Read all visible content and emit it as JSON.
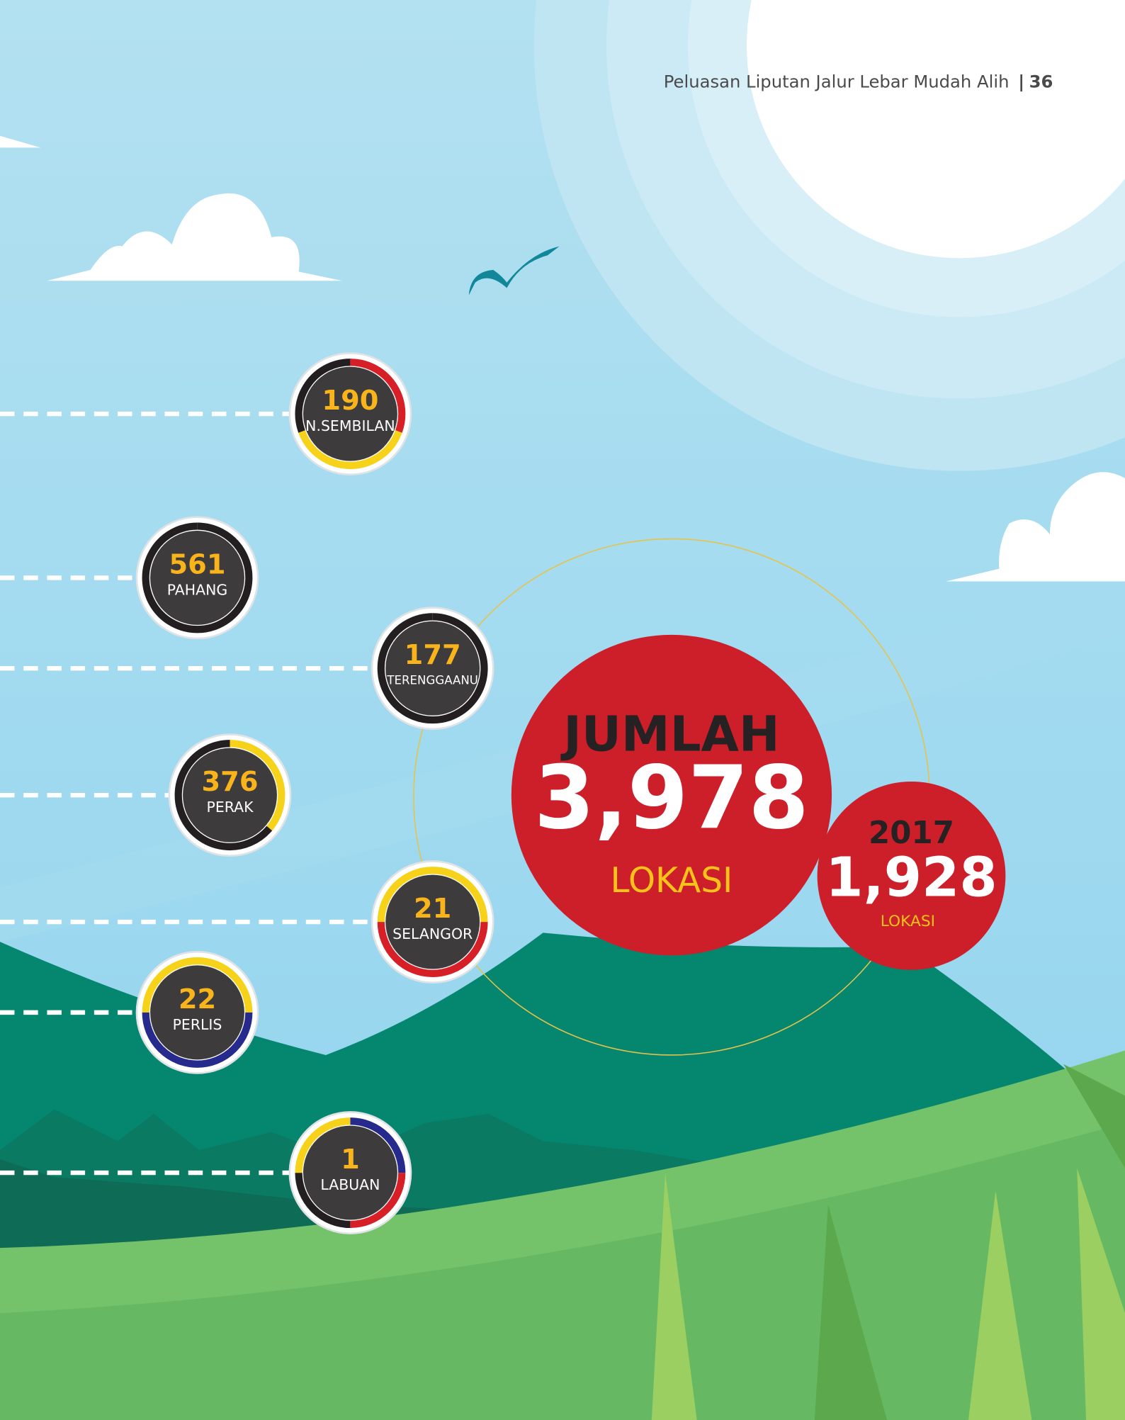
{
  "header": {
    "title": "Peluasan Liputan Jalur Lebar Mudah Alih",
    "separator": "|",
    "page": "36"
  },
  "states": [
    {
      "value": "190",
      "name": "N.SEMBILAN"
    },
    {
      "value": "561",
      "name": "PAHANG"
    },
    {
      "value": "177",
      "name": "TERENGGAANU"
    },
    {
      "value": "376",
      "name": "PERAK"
    },
    {
      "value": "21",
      "name": "SELANGOR"
    },
    {
      "value": "22",
      "name": "PERLIS"
    },
    {
      "value": "1",
      "name": "LABUAN"
    }
  ],
  "total": {
    "label": "JUMLAH",
    "value": "3,978",
    "unit": "LOKASI"
  },
  "previous": {
    "year": "2017",
    "value": "1,928",
    "unit": "LOKASI"
  }
}
